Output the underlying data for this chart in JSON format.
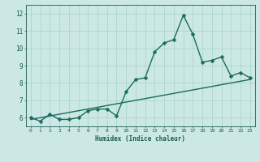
{
  "xlabel": "Humidex (Indice chaleur)",
  "bg_color": "#cce8e4",
  "grid_color": "#b0d8d2",
  "line_color": "#1a6b5e",
  "xlim": [
    -0.5,
    23.5
  ],
  "ylim": [
    5.5,
    12.5
  ],
  "yticks": [
    6,
    7,
    8,
    9,
    10,
    11,
    12
  ],
  "curve1_x": [
    0,
    1,
    2,
    3,
    4,
    5,
    6,
    7,
    8,
    9,
    10,
    11,
    12,
    13,
    14,
    15,
    16,
    17,
    18,
    19,
    20,
    21,
    22,
    23
  ],
  "curve1_y": [
    6.0,
    5.8,
    6.2,
    5.9,
    5.9,
    6.0,
    6.4,
    6.5,
    6.5,
    6.1,
    7.5,
    8.2,
    8.3,
    9.8,
    10.3,
    10.5,
    11.9,
    10.8,
    9.2,
    9.3,
    9.5,
    8.4,
    8.6,
    8.3
  ],
  "curve2_x": [
    0,
    23
  ],
  "curve2_y": [
    5.9,
    8.2
  ],
  "marker_size": 2.5,
  "line_width": 1.0
}
